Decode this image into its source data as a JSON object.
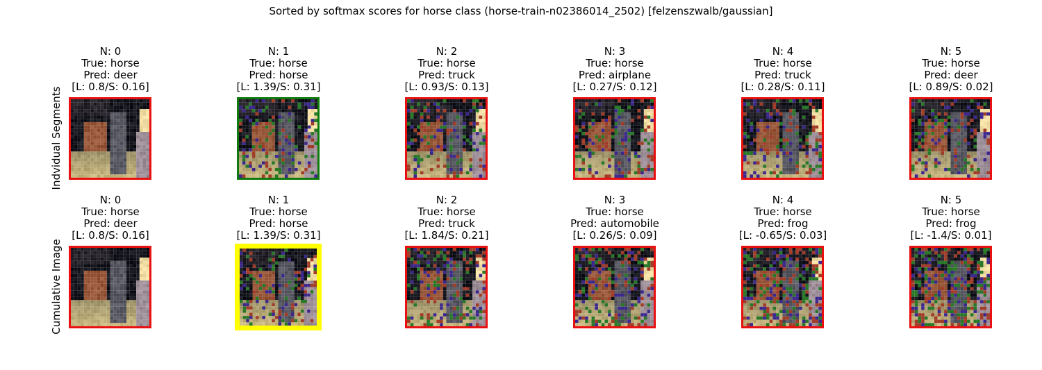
{
  "title": "Sorted by softmax scores for horse class (horse-train-n02386014_2502) [felzenszwalb/gaussian]",
  "row_labels": [
    "Indvidual Segments",
    "Cumulative Image"
  ],
  "colors": {
    "bad": "#e81010",
    "best_individual": "#0e7a0e",
    "best_cumulative": "#ffff00"
  },
  "rows": [
    {
      "panels": [
        {
          "n": "N: 0",
          "true": "True: horse",
          "pred": "Pred: deer",
          "score": "[L: 0.8/S: 0.16]",
          "border": "bad",
          "noise": 0
        },
        {
          "n": "N: 1",
          "true": "True: horse",
          "pred": "Pred: horse",
          "score": "[L: 1.39/S: 0.31]",
          "border": "best_individual",
          "noise": 1
        },
        {
          "n": "N: 2",
          "true": "True: horse",
          "pred": "Pred: truck",
          "score": "[L: 0.93/S: 0.13]",
          "border": "bad",
          "noise": 2
        },
        {
          "n": "N: 3",
          "true": "True: horse",
          "pred": "Pred: airplane",
          "score": "[L: 0.27/S: 0.12]",
          "border": "bad",
          "noise": 3
        },
        {
          "n": "N: 4",
          "true": "True: horse",
          "pred": "Pred: truck",
          "score": "[L: 0.28/S: 0.11]",
          "border": "bad",
          "noise": 4
        },
        {
          "n": "N: 5",
          "true": "True: horse",
          "pred": "Pred: deer",
          "score": "[L: 0.89/S: 0.02]",
          "border": "bad",
          "noise": 5
        }
      ]
    },
    {
      "panels": [
        {
          "n": "N: 0",
          "true": "True: horse",
          "pred": "Pred: deer",
          "score": "[L: 0.8/S: 0.16]",
          "border": "bad",
          "noise": 0
        },
        {
          "n": "N: 1",
          "true": "True: horse",
          "pred": "Pred: horse",
          "score": "[L: 1.39/S: 0.31]",
          "border": "best_cumulative",
          "noise": 1
        },
        {
          "n": "N: 2",
          "true": "True: horse",
          "pred": "Pred: truck",
          "score": "[L: 1.84/S: 0.21]",
          "border": "bad",
          "noise": 12
        },
        {
          "n": "N: 3",
          "true": "True: horse",
          "pred": "Pred: automobile",
          "score": "[L: 0.26/S: 0.09]",
          "border": "bad",
          "noise": 123
        },
        {
          "n": "N: 4",
          "true": "True: horse",
          "pred": "Pred: frog",
          "score": "[L: -0.65/S: 0.03]",
          "border": "bad",
          "noise": 1234
        },
        {
          "n": "N: 5",
          "true": "True: horse",
          "pred": "Pred: frog",
          "score": "[L: -1.4/S: 0.01]",
          "border": "bad",
          "noise": 12345
        }
      ]
    }
  ]
}
